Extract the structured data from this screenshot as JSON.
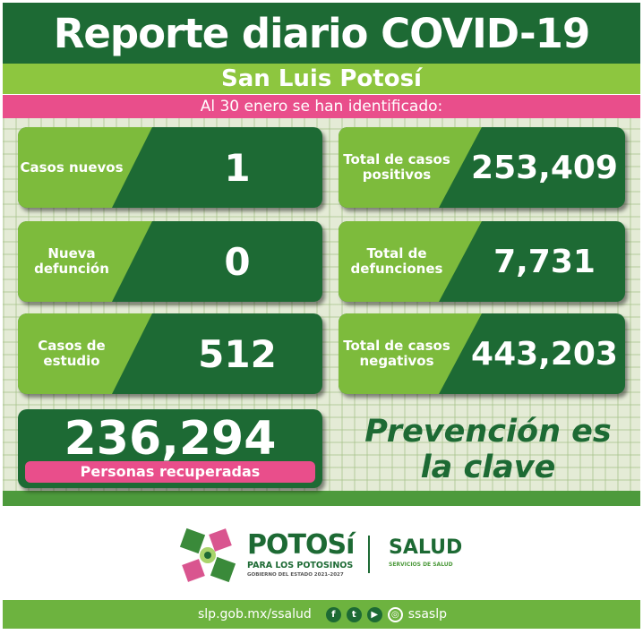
{
  "header": {
    "title": "Reporte diario COVID-19",
    "state": "San Luis Potosí",
    "date_line": "Al 30 enero se han identificado:"
  },
  "cards": {
    "casos_nuevos": {
      "label": "Casos nuevos",
      "value": "1"
    },
    "total_positivos": {
      "label": "Total de casos positivos",
      "value": "253,409"
    },
    "nueva_defuncion": {
      "label": "Nueva defunción",
      "value": "0"
    },
    "total_defunciones": {
      "label": "Total de defunciones",
      "value": "7,731"
    },
    "casos_estudio": {
      "label": "Casos de estudio",
      "value": "512"
    },
    "total_negativos": {
      "label": "Total de casos negativos",
      "value": "443,203"
    },
    "recuperadas": {
      "value": "236,294",
      "label": "Personas recuperadas"
    }
  },
  "slogan": "Prevención es la clave",
  "logos": {
    "potosi": "POTOSí",
    "potosi_sub": "PARA LOS POTOSINOS",
    "potosi_gov": "GOBIERNO DEL ESTADO 2021-2027",
    "salud": "SALUD",
    "salud_sub": "SERVICIOS DE SALUD"
  },
  "footer": {
    "url": "slp.gob.mx/ssalud",
    "handle": "ssaslp",
    "icons": [
      "facebook-icon",
      "twitter-icon",
      "youtube-icon",
      "instagram-icon"
    ]
  },
  "colors": {
    "dark_green": "#1d6a34",
    "light_green": "#8dc63f",
    "pink": "#e94e8b"
  }
}
